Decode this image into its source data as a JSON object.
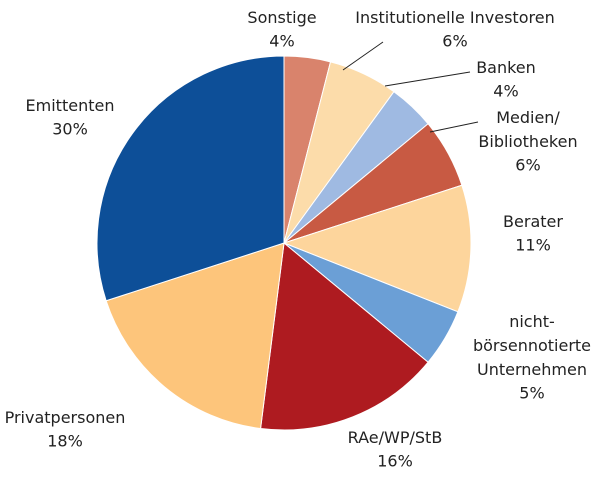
{
  "chart_data": {
    "type": "pie",
    "categories": [
      "Sonstige",
      "Institutionelle Investoren",
      "Banken",
      "Medien/\nBibliotheken",
      "Berater",
      "nicht-\nbörsennotierte\nUnternehmen",
      "RAe/WP/StB",
      "Privatpersonen",
      "Emittenten"
    ],
    "values": [
      4,
      6,
      4,
      6,
      11,
      5,
      16,
      18,
      30
    ],
    "value_labels": [
      "4%",
      "6%",
      "4%",
      "6%",
      "11%",
      "5%",
      "16%",
      "18%",
      "30%"
    ],
    "colors": [
      "#d9836c",
      "#fcdcaa",
      "#9fbae2",
      "#c85a43",
      "#fdd59c",
      "#6b9fd6",
      "#ae1b20",
      "#fdc57b",
      "#0d4f98"
    ]
  }
}
